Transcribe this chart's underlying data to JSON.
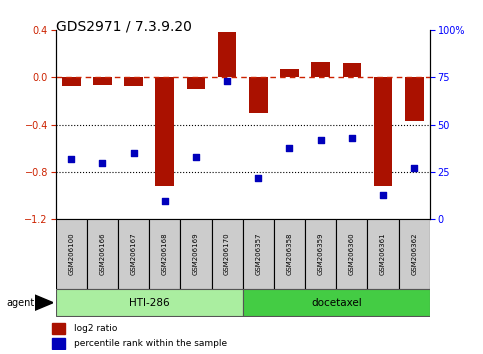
{
  "title": "GDS2971 / 7.3.9.20",
  "samples": [
    "GSM206100",
    "GSM206166",
    "GSM206167",
    "GSM206168",
    "GSM206169",
    "GSM206170",
    "GSM206357",
    "GSM206358",
    "GSM206359",
    "GSM206360",
    "GSM206361",
    "GSM206362"
  ],
  "bar_values": [
    -0.07,
    -0.06,
    -0.07,
    -0.92,
    -0.1,
    0.38,
    -0.3,
    0.07,
    0.13,
    0.12,
    -0.92,
    -0.37
  ],
  "percentile_rank": [
    32,
    30,
    35,
    10,
    33,
    73,
    22,
    38,
    42,
    43,
    13,
    27
  ],
  "ylim_left": [
    -1.2,
    0.4
  ],
  "ylim_right": [
    0,
    100
  ],
  "bar_color": "#AA1100",
  "dot_color": "#0000BB",
  "hline_color": "#CC2200",
  "hti_color": "#AAEEA0",
  "doc_color": "#44CC44",
  "box_color": "#CCCCCC",
  "legend_bar_label": "log2 ratio",
  "legend_dot_label": "percentile rank within the sample",
  "agent_label": "agent",
  "title_fontsize": 10,
  "tick_fontsize": 7,
  "label_fontsize": 7.5
}
